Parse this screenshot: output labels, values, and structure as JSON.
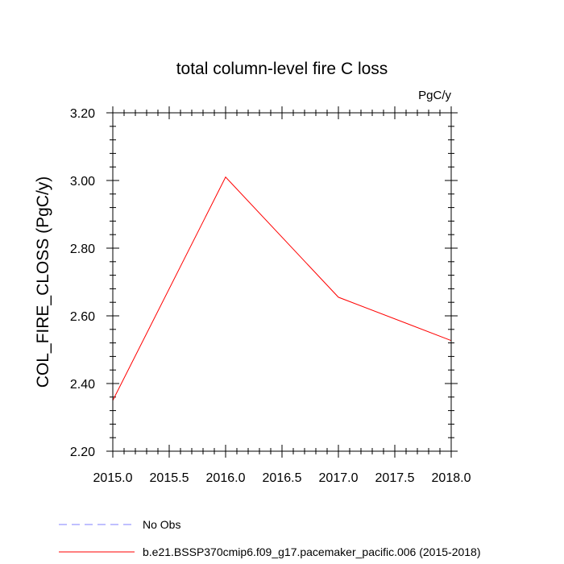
{
  "chart_data": {
    "type": "line",
    "title": "total column-level fire C loss",
    "units_label": "PgC/y",
    "xlabel": "",
    "ylabel": "COL_FIRE_CLOSS  (PgC/y)",
    "xlim": [
      2015.0,
      2018.0
    ],
    "ylim": [
      2.2,
      3.2
    ],
    "x_major_ticks": [
      2015.0,
      2015.5,
      2016.0,
      2016.5,
      2017.0,
      2017.5,
      2018.0
    ],
    "x_tick_labels": [
      "2015.0",
      "2015.5",
      "2016.0",
      "2016.5",
      "2017.0",
      "2017.5",
      "2018.0"
    ],
    "y_major_ticks": [
      2.2,
      2.4,
      2.6,
      2.8,
      3.0,
      3.2
    ],
    "y_tick_labels": [
      "2.20",
      "2.40",
      "2.60",
      "2.80",
      "3.00",
      "3.20"
    ],
    "x_minor_step": 0.1,
    "y_minor_step": 0.04,
    "grid": false,
    "series": [
      {
        "name": "b.e21.BSSP370cmip6.f09_g17.pacemaker_pacific.006 (2015-2018)",
        "color": "#ff0000",
        "dash": "solid",
        "x": [
          2015.0,
          2016.0,
          2017.0,
          2018.0
        ],
        "values": [
          2.35,
          3.01,
          2.655,
          2.527
        ]
      }
    ],
    "legend": [
      {
        "label": "No Obs",
        "color": "#8080ff",
        "dash": "dashed"
      },
      {
        "label": "b.e21.BSSP370cmip6.f09_g17.pacemaker_pacific.006 (2015-2018)",
        "color": "#ff0000",
        "dash": "solid"
      }
    ],
    "legend_position": "bottom-left"
  }
}
